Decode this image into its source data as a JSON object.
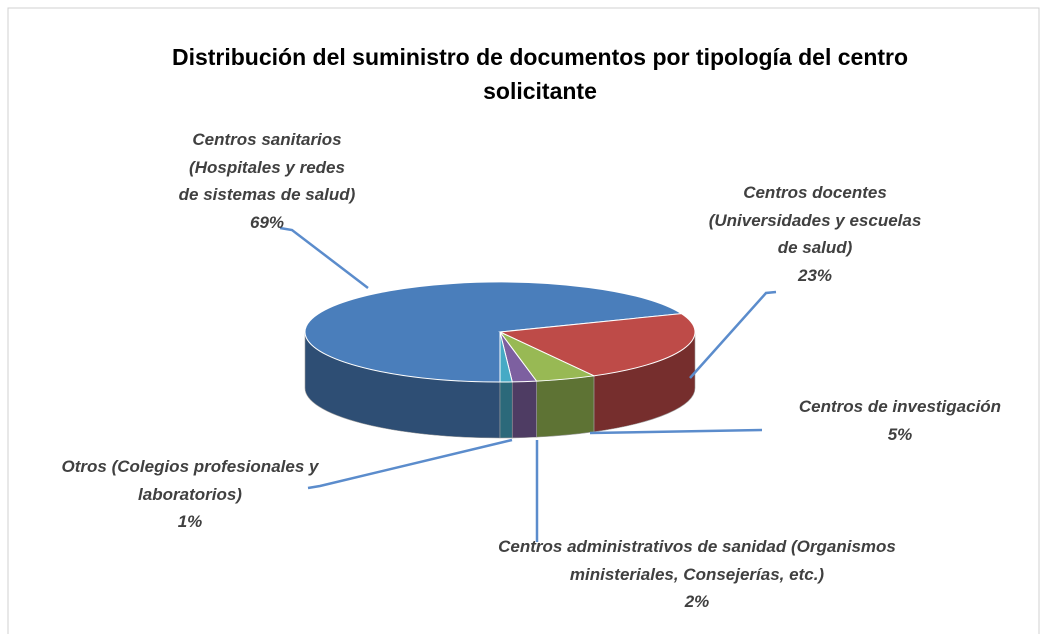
{
  "chart_data": {
    "type": "pie3d",
    "title": "Distribución del suministro de documentos por tipología del centro solicitante",
    "categories": [
      "Centros sanitarios\n(Hospitales  y redes\nde sistemas de salud)",
      "Centros docentes\n(Universidades y escuelas\nde salud)",
      "Centros de investigación",
      "Centros administrativos de sanidad (Organismos\nministeriales, Consejerías, etc.)",
      "Otros (Colegios profesionales y\nlaboratorios)"
    ],
    "values": [
      69,
      23,
      5,
      2,
      1
    ],
    "value_labels": [
      "69%",
      "23%",
      "5%",
      "2%",
      "1%"
    ],
    "colors": [
      "#4a7ebb",
      "#be4b48",
      "#98b954",
      "#7d60a0",
      "#46aac5"
    ]
  }
}
